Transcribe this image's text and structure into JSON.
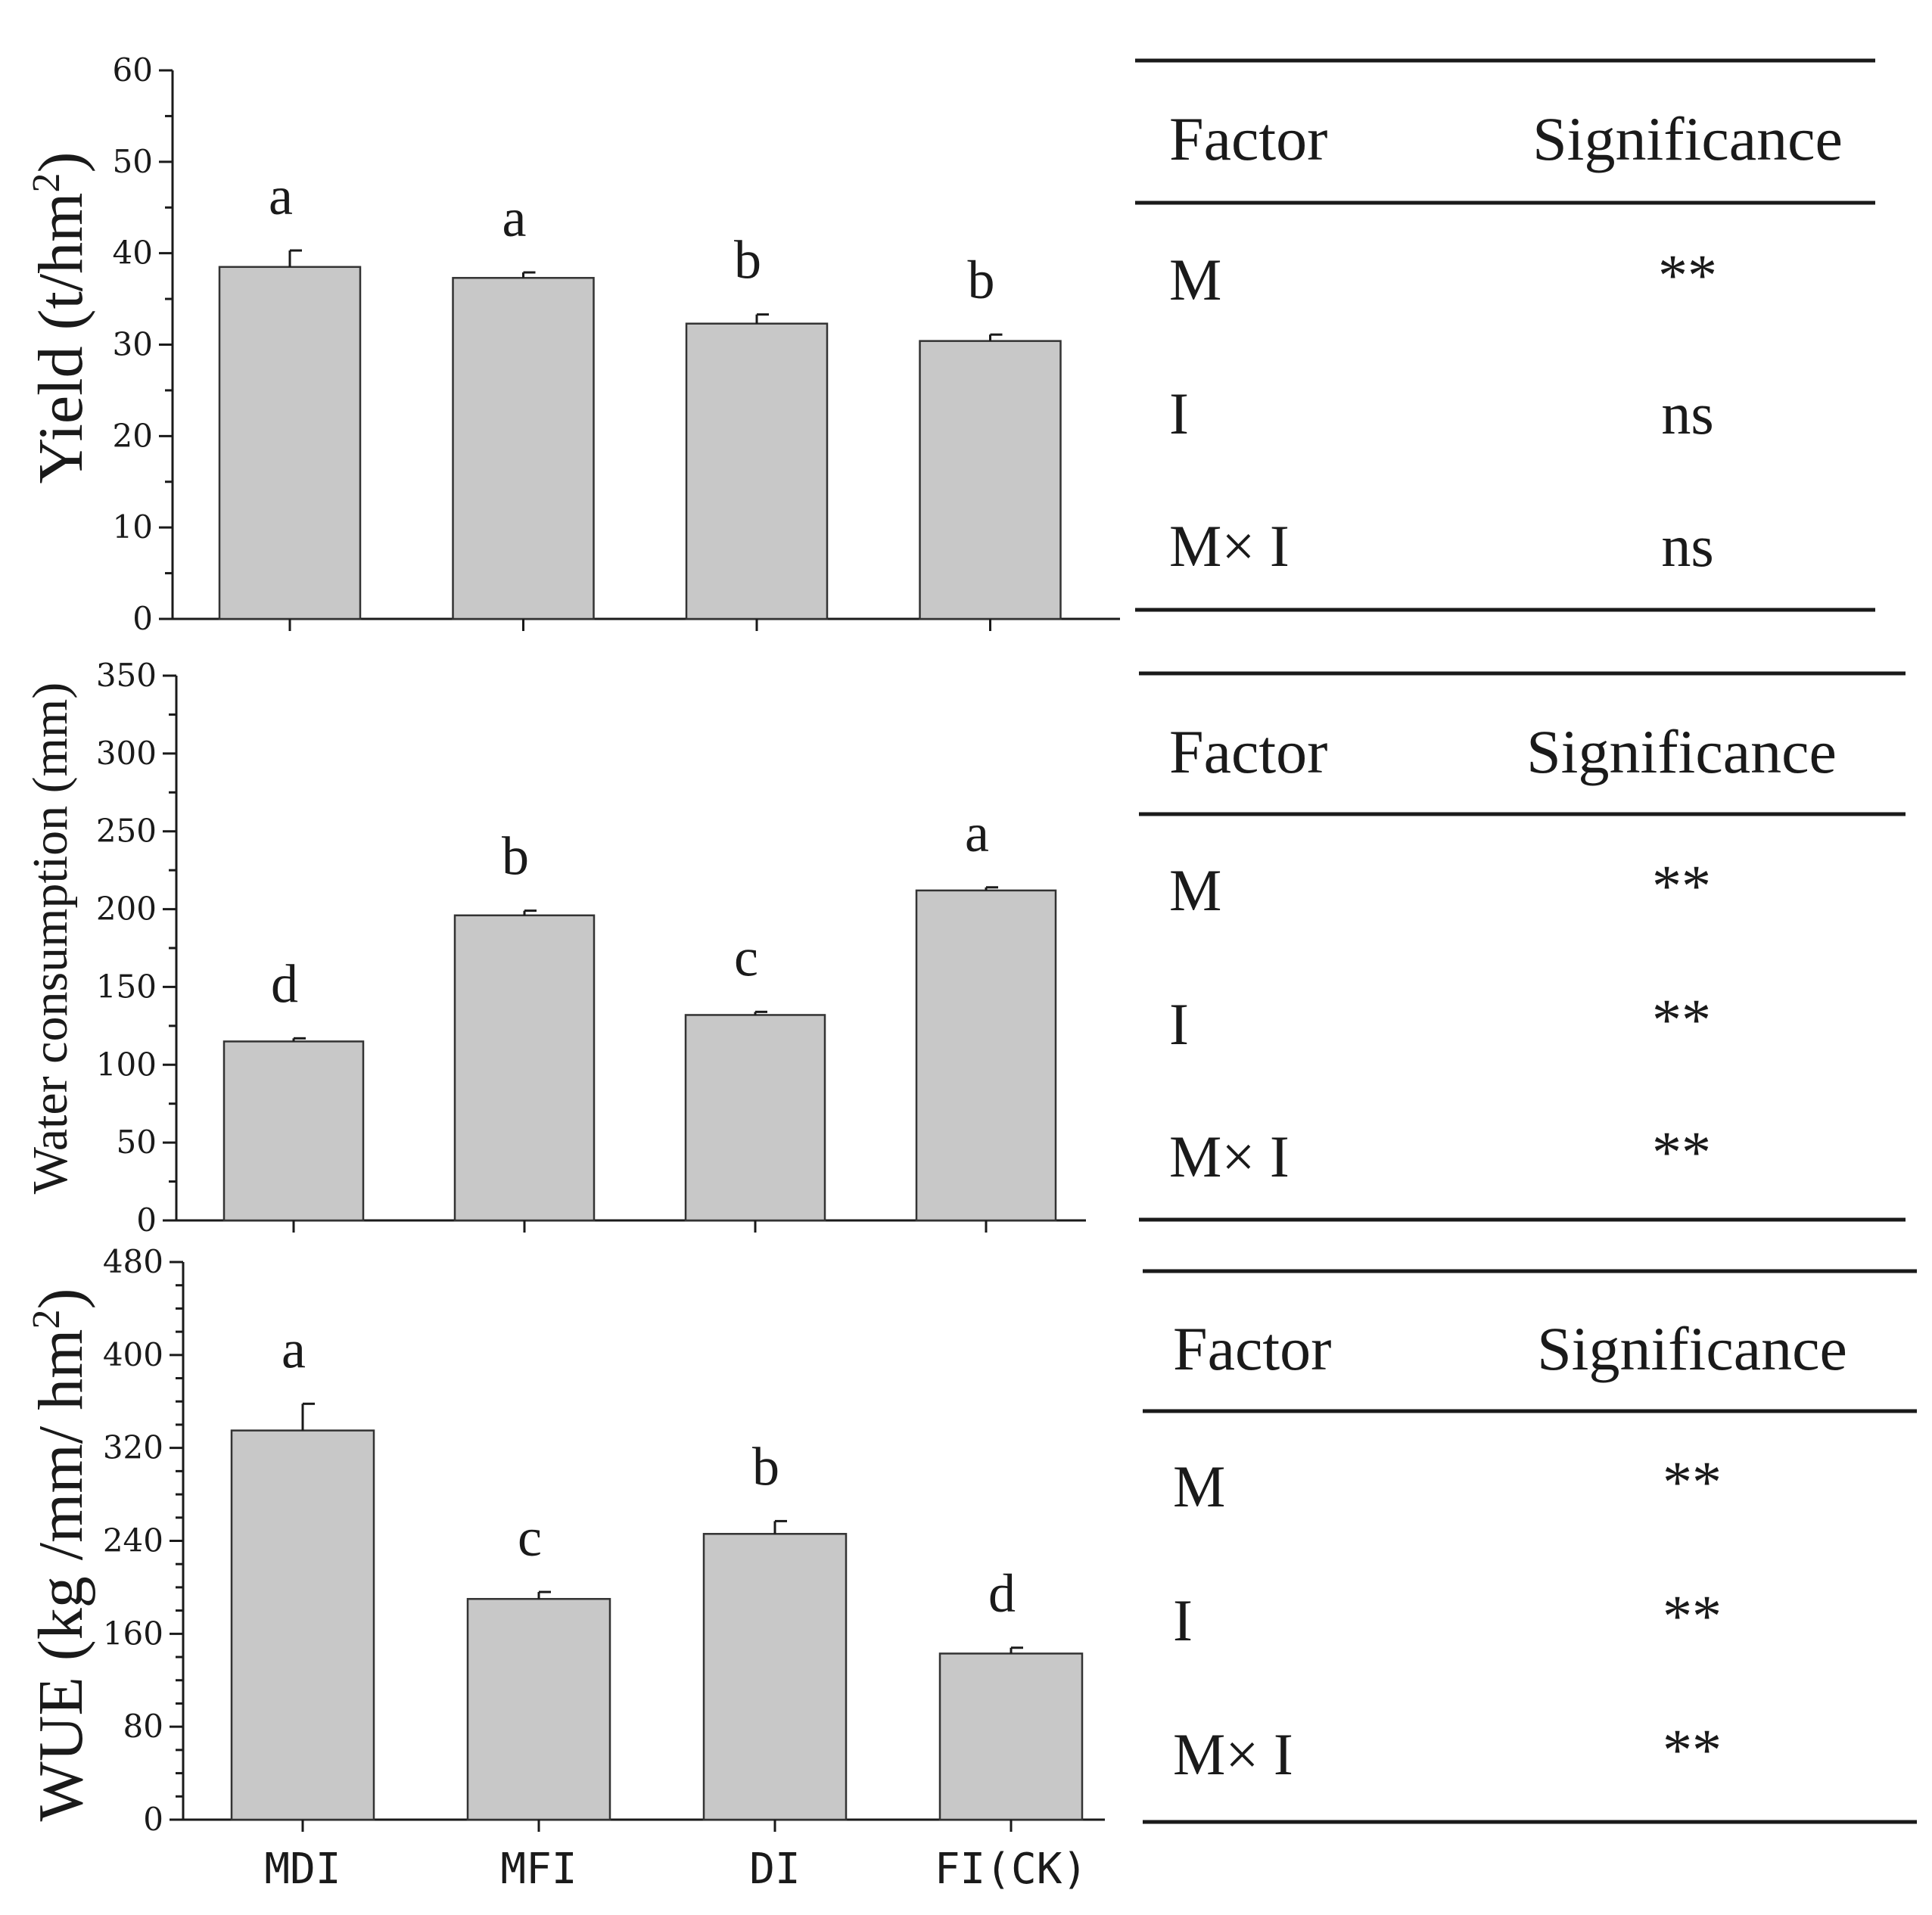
{
  "chart_data": [
    {
      "type": "bar",
      "categories": [
        "MDI",
        "MFI",
        "DI",
        "FI(CK)"
      ],
      "values": [
        38.5,
        37.3,
        32.3,
        30.4
      ],
      "errors": [
        1.8,
        0.6,
        1.0,
        0.7
      ],
      "significance_letters": [
        "a",
        "a",
        "b",
        "b"
      ],
      "ylabel": "Yield (t/hm2)",
      "ylim": [
        0,
        60
      ],
      "yticks": [
        0,
        10,
        20,
        30,
        40,
        50,
        60
      ],
      "significance_table": {
        "headers": [
          "Factor",
          "Significance"
        ],
        "rows": [
          [
            "M",
            "**"
          ],
          [
            "I",
            "ns"
          ],
          [
            "M× I",
            "ns"
          ]
        ]
      }
    },
    {
      "type": "bar",
      "categories": [
        "MDI",
        "MFI",
        "DI",
        "FI(CK)"
      ],
      "values": [
        115,
        196,
        132,
        212
      ],
      "errors": [
        2,
        3,
        2,
        2
      ],
      "significance_letters": [
        "d",
        "b",
        "c",
        "a"
      ],
      "ylabel": "Water consumption (mm)",
      "ylim": [
        0,
        350
      ],
      "yticks": [
        0,
        50,
        100,
        150,
        200,
        250,
        300,
        350
      ],
      "significance_table": {
        "headers": [
          "Factor",
          "Significance"
        ],
        "rows": [
          [
            "M",
            "**"
          ],
          [
            "I",
            "**"
          ],
          [
            "M× I",
            "**"
          ]
        ]
      }
    },
    {
      "type": "bar",
      "categories": [
        "MDI",
        "MFI",
        "DI",
        "FI(CK)"
      ],
      "values": [
        335,
        190,
        246,
        143
      ],
      "errors": [
        23,
        6,
        11,
        5
      ],
      "significance_letters": [
        "a",
        "c",
        "b",
        "d"
      ],
      "ylabel": "WUE (kg /mm/ hm2)",
      "ylim": [
        0,
        480
      ],
      "yticks": [
        0,
        80,
        160,
        240,
        320,
        400,
        480
      ],
      "xlabel_ticks": [
        "MDI",
        "MFI",
        "DI",
        "FI(CK)"
      ],
      "significance_table": {
        "headers": [
          "Factor",
          "Significance"
        ],
        "rows": [
          [
            "M",
            "**"
          ],
          [
            "I",
            "**"
          ],
          [
            "M× I",
            "**"
          ]
        ]
      }
    }
  ],
  "ylabel_parts": [
    {
      "main": "Yield (t/hm",
      "sup": "2",
      "end": ")"
    },
    {
      "main": "Water consumption (mm)",
      "sup": "",
      "end": ""
    },
    {
      "main": "WUE (kg /mm/ hm",
      "sup": "2",
      "end": ")"
    }
  ],
  "colors": {
    "bar_fill": "#c8c8c8",
    "stroke": "#1a1a1a"
  }
}
